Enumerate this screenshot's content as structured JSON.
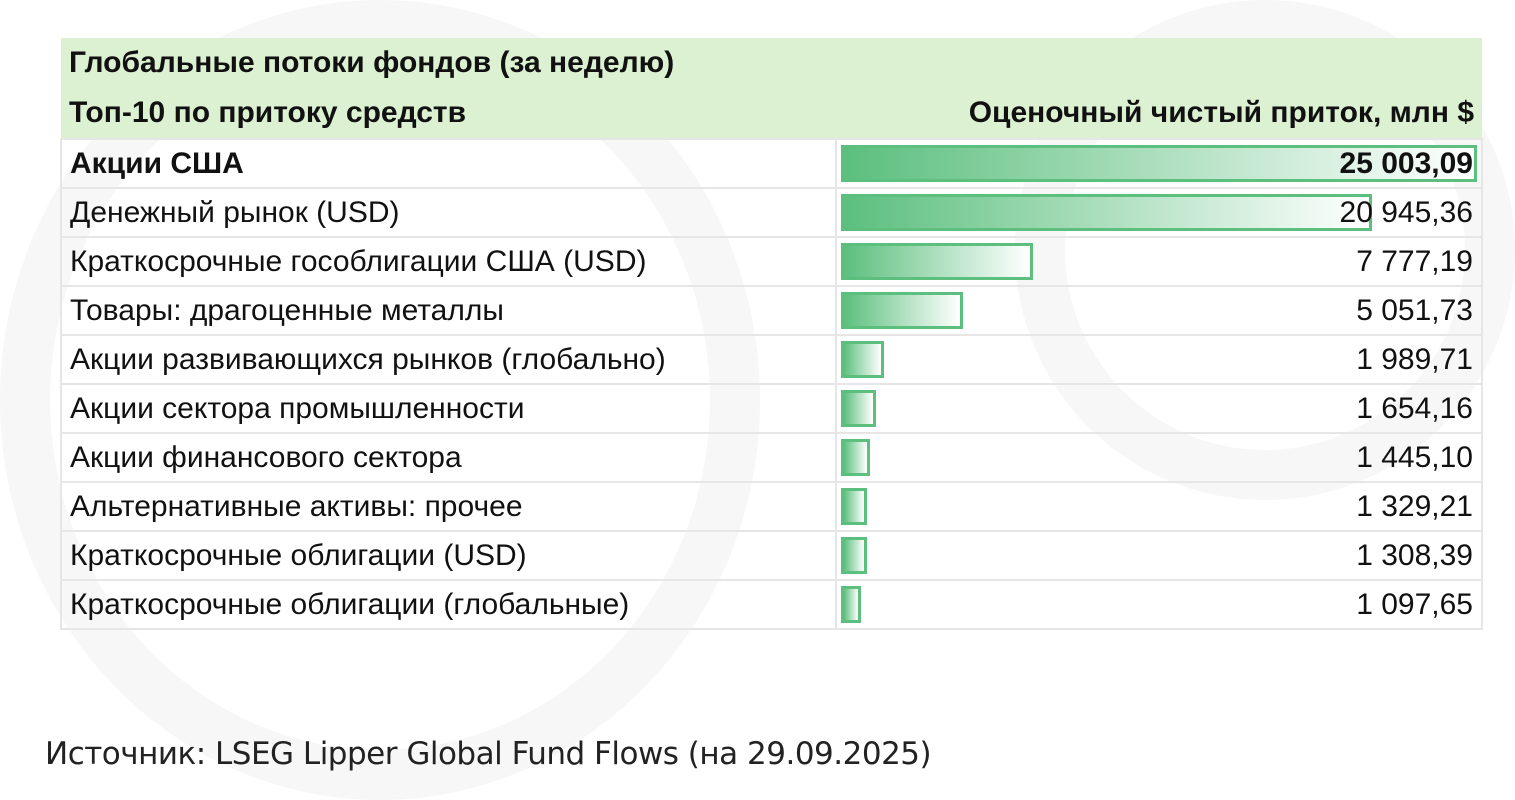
{
  "title": "Глобальные потоки фондов (за неделю)",
  "columns": {
    "category": "Топ-10 по притоку средств",
    "value": "Оценочный чистый приток, млн $"
  },
  "colors": {
    "header_bg": "#dcf0d2",
    "bar": "#5cbf7e"
  },
  "rows": [
    {
      "label": "Акции США",
      "value": 25003.09,
      "display": "25 003,09"
    },
    {
      "label": "Денежный рынок (USD)",
      "value": 20945.36,
      "display": "20 945,36"
    },
    {
      "label": "Краткосрочные гособлигации США (USD)",
      "value": 7777.19,
      "display": "7 777,19"
    },
    {
      "label": "Товары: драгоценные металлы",
      "value": 5051.73,
      "display": "5 051,73"
    },
    {
      "label": "Акции развивающихся рынков (глобально)",
      "value": 1989.71,
      "display": "1 989,71"
    },
    {
      "label": "Акции сектора промышленности",
      "value": 1654.16,
      "display": "1 654,16"
    },
    {
      "label": "Акции финансового сектора",
      "value": 1445.1,
      "display": "1 445,10"
    },
    {
      "label": "Альтернативные активы: прочее",
      "value": 1329.21,
      "display": "1 329,21"
    },
    {
      "label": "Краткосрочные облигации (USD)",
      "value": 1308.39,
      "display": "1 308,39"
    },
    {
      "label": "Краткосрочные облигации (глобальные)",
      "value": 1097.65,
      "display": "1 097,65"
    }
  ],
  "source": "Источник: LSEG Lipper Global Fund Flows (на 29.09.2025)"
}
